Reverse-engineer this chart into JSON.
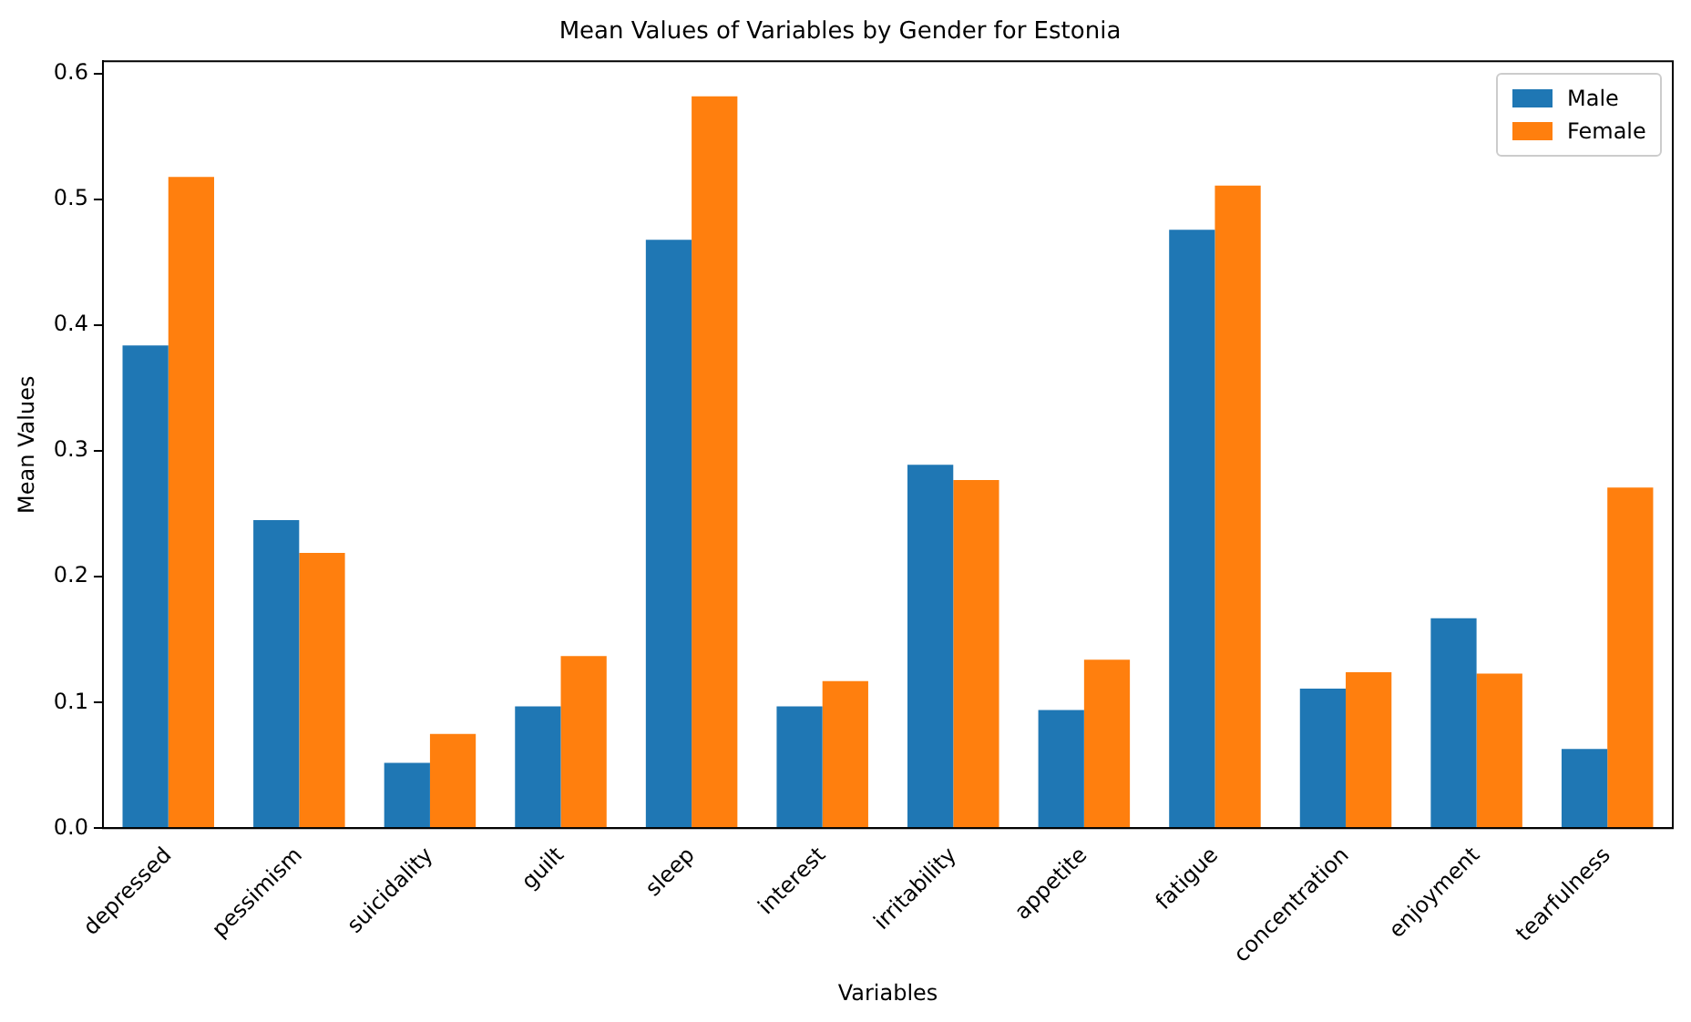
{
  "chart_data": {
    "type": "bar",
    "title": "Mean Values of Variables by Gender for Estonia",
    "xlabel": "Variables",
    "ylabel": "Mean Values",
    "categories": [
      "depressed",
      "pessimism",
      "suicidality",
      "guilt",
      "sleep",
      "interest",
      "irritability",
      "appetite",
      "fatigue",
      "concentration",
      "enjoyment",
      "tearfulness"
    ],
    "series": [
      {
        "name": "Male",
        "color": "#1f77b4",
        "values": [
          0.384,
          0.245,
          0.052,
          0.097,
          0.468,
          0.097,
          0.289,
          0.094,
          0.476,
          0.111,
          0.167,
          0.063
        ]
      },
      {
        "name": "Female",
        "color": "#ff7f0e",
        "values": [
          0.518,
          0.219,
          0.075,
          0.137,
          0.582,
          0.117,
          0.277,
          0.134,
          0.511,
          0.124,
          0.123,
          0.271
        ]
      }
    ],
    "ylim": [
      0,
      0.61
    ],
    "yticks": [
      {
        "value": 0,
        "label": "0.0"
      },
      {
        "value": 0.1,
        "label": "0.1"
      },
      {
        "value": 0.2,
        "label": "0.2"
      },
      {
        "value": 0.3,
        "label": "0.3"
      },
      {
        "value": 0.4,
        "label": "0.4"
      },
      {
        "value": 0.5,
        "label": "0.5"
      },
      {
        "value": 0.6,
        "label": "0.6"
      }
    ],
    "grid": false,
    "legend": "top right"
  }
}
